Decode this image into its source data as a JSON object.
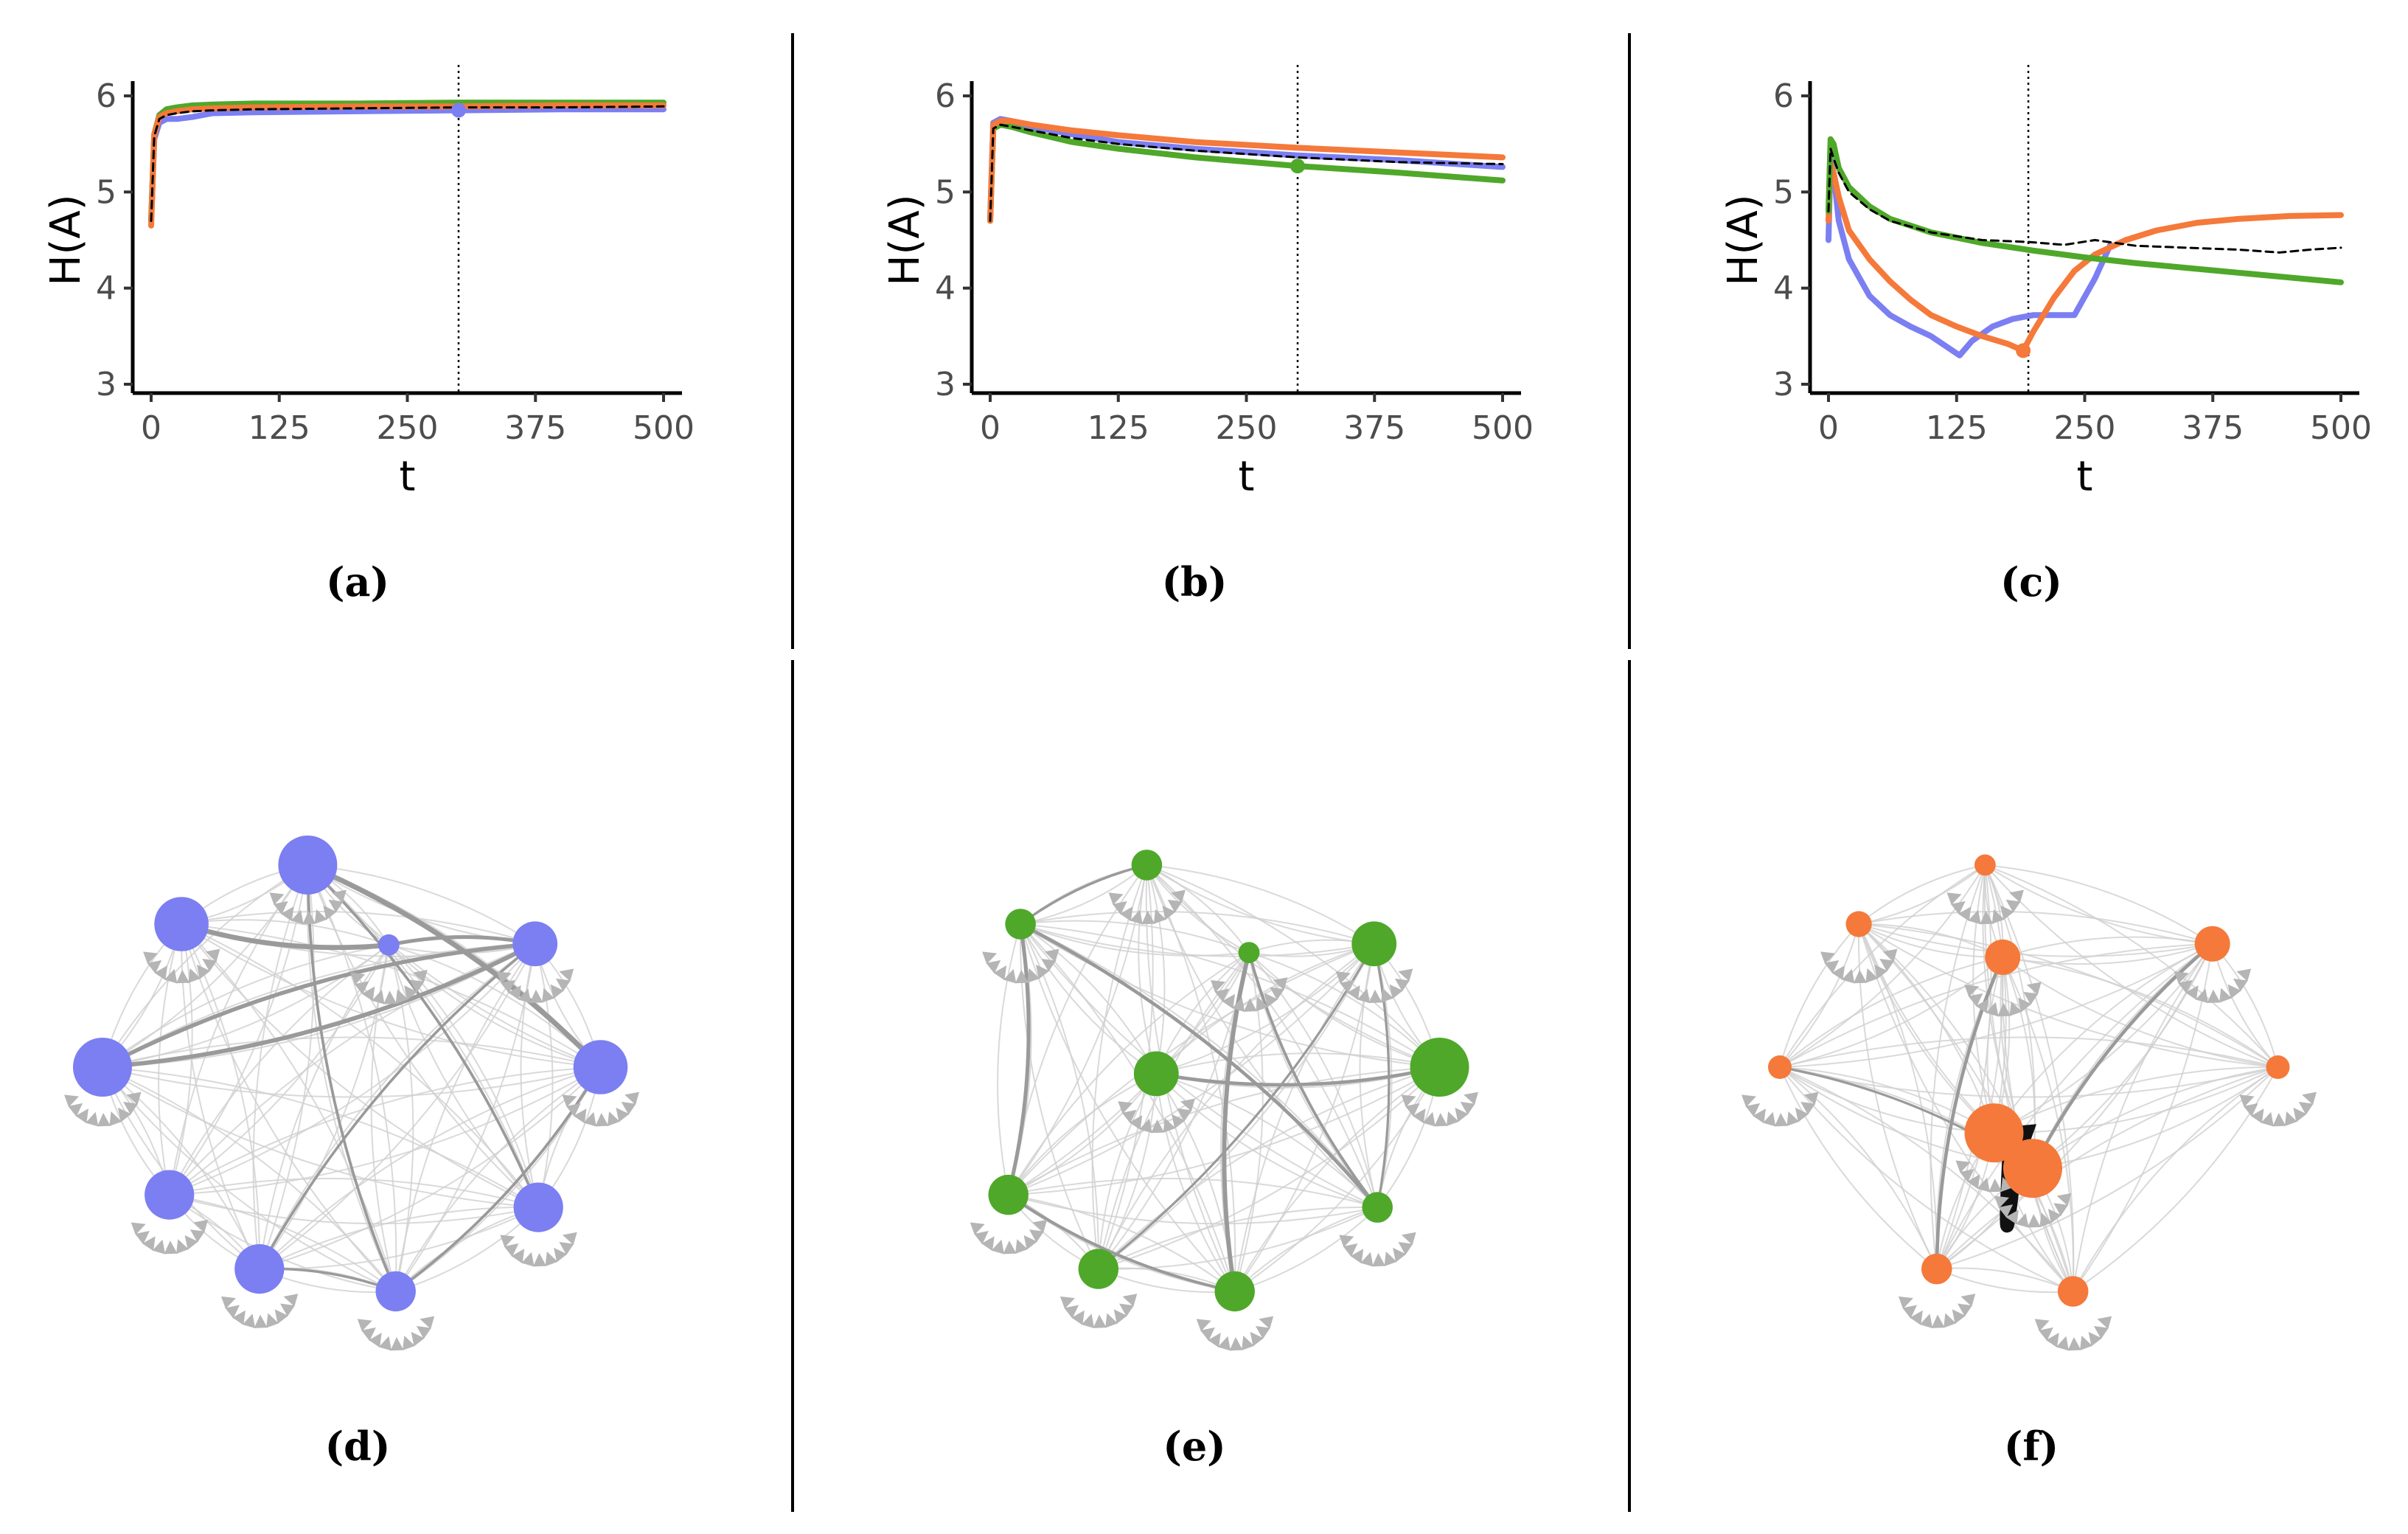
{
  "series_colors": {
    "blue": "#7b7ff2",
    "orange": "#f5793a",
    "green": "#4fa82a",
    "reference": "#000000"
  },
  "chart_data": [
    {
      "type": "line",
      "panel": "a",
      "caption": "(a)",
      "xlabel": "t",
      "ylabel": "H(A)",
      "xlim": [
        0,
        500
      ],
      "ylim": [
        3,
        6
      ],
      "xticks": [
        "0",
        "125",
        "250",
        "375",
        "500"
      ],
      "yticks": [
        "3",
        "4",
        "5",
        "6"
      ],
      "vline_x": 300,
      "series": [
        {
          "name": "blue",
          "x": [
            0,
            3,
            8,
            15,
            25,
            40,
            60,
            100,
            200,
            300,
            400,
            500
          ],
          "y": [
            4.7,
            5.55,
            5.72,
            5.76,
            5.76,
            5.78,
            5.82,
            5.83,
            5.84,
            5.85,
            5.86,
            5.86
          ]
        },
        {
          "name": "green",
          "x": [
            0,
            3,
            8,
            15,
            25,
            40,
            60,
            100,
            200,
            300,
            400,
            500
          ],
          "y": [
            4.7,
            5.6,
            5.8,
            5.86,
            5.88,
            5.9,
            5.91,
            5.92,
            5.92,
            5.93,
            5.93,
            5.93
          ]
        },
        {
          "name": "orange",
          "x": [
            0,
            3,
            8,
            15,
            25,
            40,
            60,
            100,
            200,
            300,
            400,
            500
          ],
          "y": [
            4.65,
            5.6,
            5.78,
            5.82,
            5.84,
            5.86,
            5.87,
            5.88,
            5.89,
            5.89,
            5.9,
            5.9
          ]
        },
        {
          "name": "reference",
          "dashed": true,
          "x": [
            0,
            3,
            8,
            15,
            25,
            40,
            60,
            100,
            200,
            300,
            400,
            500
          ],
          "y": [
            4.7,
            5.58,
            5.76,
            5.8,
            5.82,
            5.84,
            5.85,
            5.86,
            5.87,
            5.88,
            5.88,
            5.89
          ]
        }
      ],
      "markers": [
        {
          "series": "blue",
          "x": 300,
          "y": 5.85
        }
      ]
    },
    {
      "type": "line",
      "panel": "b",
      "caption": "(b)",
      "xlabel": "t",
      "ylabel": "H(A)",
      "xlim": [
        0,
        500
      ],
      "ylim": [
        3,
        6
      ],
      "xticks": [
        "0",
        "125",
        "250",
        "375",
        "500"
      ],
      "yticks": [
        "3",
        "4",
        "5",
        "6"
      ],
      "vline_x": 300,
      "series": [
        {
          "name": "blue",
          "x": [
            0,
            3,
            10,
            20,
            40,
            80,
            125,
            200,
            300,
            400,
            500
          ],
          "y": [
            4.7,
            5.72,
            5.76,
            5.74,
            5.68,
            5.6,
            5.52,
            5.45,
            5.38,
            5.33,
            5.26
          ]
        },
        {
          "name": "green",
          "x": [
            0,
            3,
            10,
            20,
            40,
            80,
            125,
            200,
            300,
            400,
            500
          ],
          "y": [
            4.7,
            5.66,
            5.7,
            5.68,
            5.62,
            5.52,
            5.45,
            5.36,
            5.27,
            5.2,
            5.12
          ]
        },
        {
          "name": "orange",
          "x": [
            0,
            3,
            10,
            20,
            40,
            80,
            125,
            200,
            300,
            400,
            500
          ],
          "y": [
            4.7,
            5.7,
            5.74,
            5.74,
            5.7,
            5.64,
            5.59,
            5.52,
            5.46,
            5.41,
            5.36
          ]
        },
        {
          "name": "reference",
          "dashed": true,
          "x": [
            0,
            3,
            10,
            20,
            40,
            80,
            125,
            200,
            300,
            400,
            500
          ],
          "y": [
            4.7,
            5.66,
            5.7,
            5.68,
            5.64,
            5.56,
            5.5,
            5.43,
            5.36,
            5.31,
            5.29
          ]
        }
      ],
      "markers": [
        {
          "series": "green",
          "x": 300,
          "y": 5.27
        }
      ]
    },
    {
      "type": "line",
      "panel": "c",
      "caption": "(c)",
      "xlabel": "t",
      "ylabel": "H(A)",
      "xlim": [
        0,
        500
      ],
      "ylim": [
        3,
        6
      ],
      "xticks": [
        "0",
        "125",
        "250",
        "375",
        "500"
      ],
      "yticks": [
        "3",
        "4",
        "5",
        "6"
      ],
      "vline_x": 195,
      "series": [
        {
          "name": "blue",
          "x": [
            0,
            2,
            5,
            10,
            20,
            40,
            60,
            80,
            100,
            128,
            140,
            160,
            180,
            200,
            220,
            240,
            260,
            275
          ],
          "y": [
            4.5,
            5.35,
            5.2,
            4.7,
            4.3,
            3.92,
            3.72,
            3.6,
            3.5,
            3.3,
            3.45,
            3.6,
            3.68,
            3.72,
            3.72,
            3.72,
            4.1,
            4.45
          ]
        },
        {
          "name": "orange",
          "x": [
            0,
            2,
            5,
            10,
            20,
            40,
            60,
            80,
            100,
            125,
            150,
            175,
            190,
            200,
            220,
            240,
            260,
            290,
            320,
            360,
            400,
            450,
            500
          ],
          "y": [
            4.7,
            5.3,
            5.2,
            4.95,
            4.6,
            4.3,
            4.07,
            3.88,
            3.72,
            3.6,
            3.5,
            3.42,
            3.35,
            3.55,
            3.9,
            4.18,
            4.35,
            4.5,
            4.6,
            4.68,
            4.72,
            4.75,
            4.76
          ]
        },
        {
          "name": "green",
          "x": [
            0,
            2,
            5,
            10,
            20,
            40,
            60,
            100,
            150,
            200,
            250,
            300,
            350,
            400,
            450,
            500
          ],
          "y": [
            4.8,
            5.55,
            5.5,
            5.25,
            5.05,
            4.85,
            4.72,
            4.58,
            4.47,
            4.39,
            4.32,
            4.26,
            4.21,
            4.16,
            4.11,
            4.06
          ]
        },
        {
          "name": "reference",
          "dashed": true,
          "x": [
            0,
            2,
            5,
            10,
            20,
            40,
            60,
            100,
            150,
            195,
            230,
            260,
            300,
            350,
            400,
            440,
            470,
            500
          ],
          "y": [
            4.8,
            5.45,
            5.35,
            5.2,
            5.0,
            4.82,
            4.7,
            4.58,
            4.5,
            4.48,
            4.45,
            4.5,
            4.44,
            4.42,
            4.4,
            4.37,
            4.4,
            4.42
          ]
        }
      ],
      "markers": [
        {
          "series": "orange",
          "x": 190,
          "y": 3.35
        }
      ]
    },
    {
      "type": "network",
      "panel": "d",
      "caption": "(d)",
      "node_color": "blue",
      "node_sizes": [
        1,
        0.2,
        0.9,
        0.7,
        0.9,
        1,
        0.8,
        0.8,
        0.6,
        0.8
      ]
    },
    {
      "type": "network",
      "panel": "e",
      "caption": "(e)",
      "node_color": "green",
      "node_sizes": [
        0.4,
        0.2,
        0.4,
        0.7,
        1,
        0.7,
        0.4,
        0.6,
        0.6,
        0.6
      ]
    },
    {
      "type": "network",
      "panel": "f",
      "caption": "(f)",
      "node_color": "orange",
      "node_sizes": [
        0.2,
        0.5,
        0.3,
        0.5,
        0.25,
        0.25,
        1,
        1,
        0.4,
        0.4
      ]
    }
  ]
}
